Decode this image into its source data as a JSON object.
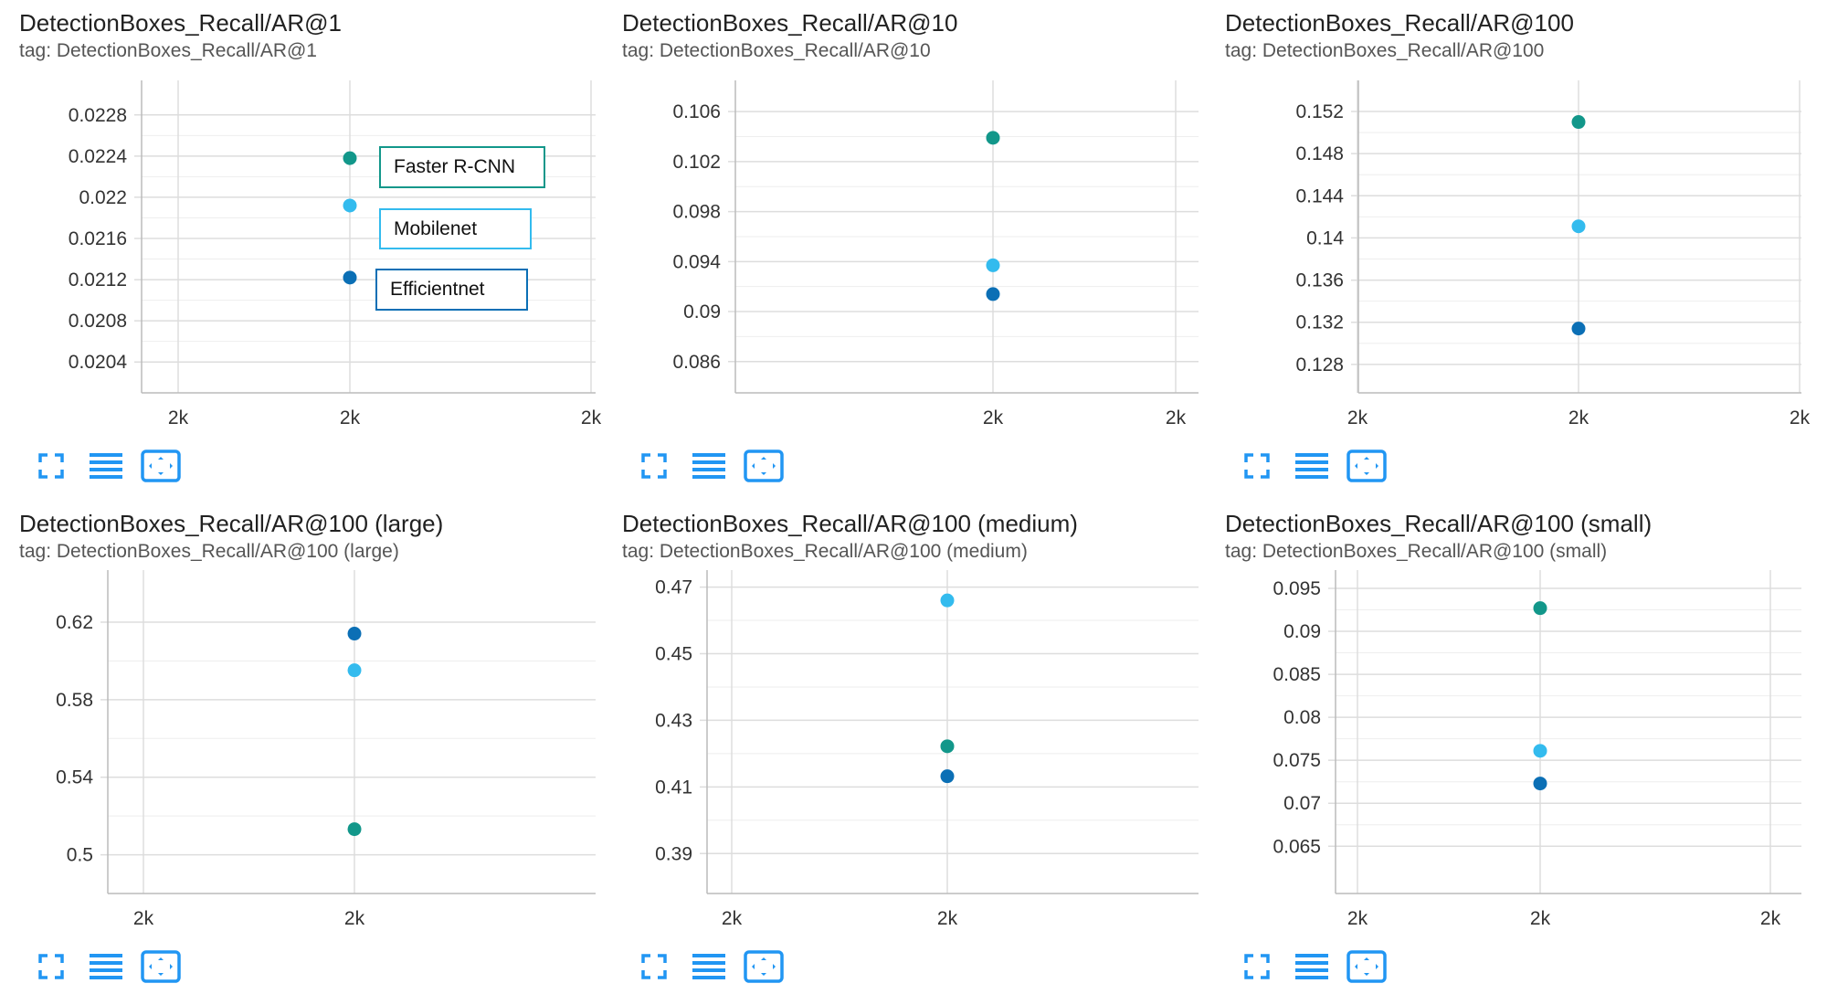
{
  "colors": {
    "faster_rcnn": "#12978a",
    "mobilenet": "#33bbee",
    "efficientnet": "#0b6fb5",
    "grid": "#dddddd",
    "axis": "#bbbbbb",
    "tool_icon": "#2196f3"
  },
  "legend": {
    "items": [
      {
        "label": "Faster R-CNN",
        "color": "#12978a"
      },
      {
        "label": "Mobilenet",
        "color": "#33bbee"
      },
      {
        "label": "Efficientnet",
        "color": "#0b6fb5"
      }
    ]
  },
  "toolbar": {
    "icons": [
      "fullscreen-icon",
      "data-table-icon",
      "fit-domain-icon"
    ]
  },
  "cards": [
    {
      "title": "DetectionBoxes_Recall/AR@1",
      "tag": "tag: DetectionBoxes_Recall/AR@1",
      "chart_data": {
        "type": "scatter",
        "y_ticks": [
          "0.0228",
          "0.0224",
          "0.022",
          "0.0216",
          "0.0212",
          "0.0208",
          "0.0204"
        ],
        "y_tick_values": [
          0.0228,
          0.0224,
          0.022,
          0.0216,
          0.0212,
          0.0208,
          0.0204
        ],
        "ylim": [
          0.0201,
          0.0231
        ],
        "x_ticks": [
          "2k",
          "2k",
          "2k"
        ],
        "series": [
          {
            "name": "Faster R-CNN",
            "color": "#12978a",
            "y": 0.02238
          },
          {
            "name": "Mobilenet",
            "color": "#33bbee",
            "y": 0.02192
          },
          {
            "name": "Efficientnet",
            "color": "#0b6fb5",
            "y": 0.02122
          }
        ]
      }
    },
    {
      "title": "DetectionBoxes_Recall/AR@10",
      "tag": "tag: DetectionBoxes_Recall/AR@10",
      "chart_data": {
        "type": "scatter",
        "y_ticks": [
          "0.106",
          "0.102",
          "0.098",
          "0.094",
          "0.09",
          "0.086"
        ],
        "y_tick_values": [
          0.106,
          0.102,
          0.098,
          0.094,
          0.09,
          0.086
        ],
        "ylim": [
          0.0835,
          0.1082
        ],
        "x_ticks": [
          "2k",
          "2k"
        ],
        "series": [
          {
            "name": "Faster R-CNN",
            "color": "#12978a",
            "y": 0.1039
          },
          {
            "name": "Mobilenet",
            "color": "#33bbee",
            "y": 0.0937
          },
          {
            "name": "Efficientnet",
            "color": "#0b6fb5",
            "y": 0.0914
          }
        ]
      }
    },
    {
      "title": "DetectionBoxes_Recall/AR@100",
      "tag": "tag: DetectionBoxes_Recall/AR@100",
      "chart_data": {
        "type": "scatter",
        "y_ticks": [
          "0.152",
          "0.148",
          "0.144",
          "0.14",
          "0.136",
          "0.132",
          "0.128"
        ],
        "y_tick_values": [
          0.152,
          0.148,
          0.144,
          0.14,
          0.136,
          0.132,
          0.128
        ],
        "ylim": [
          0.1253,
          0.1546
        ],
        "x_ticks": [
          "2k",
          "2k",
          "2k"
        ],
        "series": [
          {
            "name": "Faster R-CNN",
            "color": "#12978a",
            "y": 0.151
          },
          {
            "name": "Mobilenet",
            "color": "#33bbee",
            "y": 0.1411
          },
          {
            "name": "Efficientnet",
            "color": "#0b6fb5",
            "y": 0.1314
          }
        ]
      }
    },
    {
      "title": "DetectionBoxes_Recall/AR@100 (large)",
      "tag": "tag: DetectionBoxes_Recall/AR@100 (large)",
      "chart_data": {
        "type": "scatter",
        "y_ticks": [
          "0.62",
          "0.58",
          "0.54",
          "0.5"
        ],
        "y_tick_values": [
          0.62,
          0.58,
          0.54,
          0.5
        ],
        "ylim": [
          0.48,
          0.645
        ],
        "x_ticks": [
          "2k",
          "2k"
        ],
        "series": [
          {
            "name": "Faster R-CNN",
            "color": "#12978a",
            "y": 0.5132
          },
          {
            "name": "Mobilenet",
            "color": "#33bbee",
            "y": 0.5952
          },
          {
            "name": "Efficientnet",
            "color": "#0b6fb5",
            "y": 0.6141
          }
        ]
      }
    },
    {
      "title": "DetectionBoxes_Recall/AR@100 (medium)",
      "tag": "tag: DetectionBoxes_Recall/AR@100 (medium)",
      "chart_data": {
        "type": "scatter",
        "y_ticks": [
          "0.47",
          "0.45",
          "0.43",
          "0.41",
          "0.39"
        ],
        "y_tick_values": [
          0.47,
          0.45,
          0.43,
          0.41,
          0.39
        ],
        "ylim": [
          0.378,
          0.474
        ],
        "x_ticks": [
          "2k",
          "2k"
        ],
        "series": [
          {
            "name": "Faster R-CNN",
            "color": "#12978a",
            "y": 0.4222
          },
          {
            "name": "Mobilenet",
            "color": "#33bbee",
            "y": 0.466
          },
          {
            "name": "Efficientnet",
            "color": "#0b6fb5",
            "y": 0.4132
          }
        ]
      }
    },
    {
      "title": "DetectionBoxes_Recall/AR@100 (small)",
      "tag": "tag: DetectionBoxes_Recall/AR@100 (small)",
      "chart_data": {
        "type": "scatter",
        "y_ticks": [
          "0.095",
          "0.09",
          "0.085",
          "0.08",
          "0.075",
          "0.07",
          "0.065"
        ],
        "y_tick_values": [
          0.095,
          0.09,
          0.085,
          0.08,
          0.075,
          0.07,
          0.065
        ],
        "ylim": [
          0.0595,
          0.0967
        ],
        "x_ticks": [
          "2k",
          "2k",
          "2k"
        ],
        "series": [
          {
            "name": "Faster R-CNN",
            "color": "#12978a",
            "y": 0.0927
          },
          {
            "name": "Mobilenet",
            "color": "#33bbee",
            "y": 0.0761
          },
          {
            "name": "Efficientnet",
            "color": "#0b6fb5",
            "y": 0.0723
          }
        ]
      }
    }
  ]
}
